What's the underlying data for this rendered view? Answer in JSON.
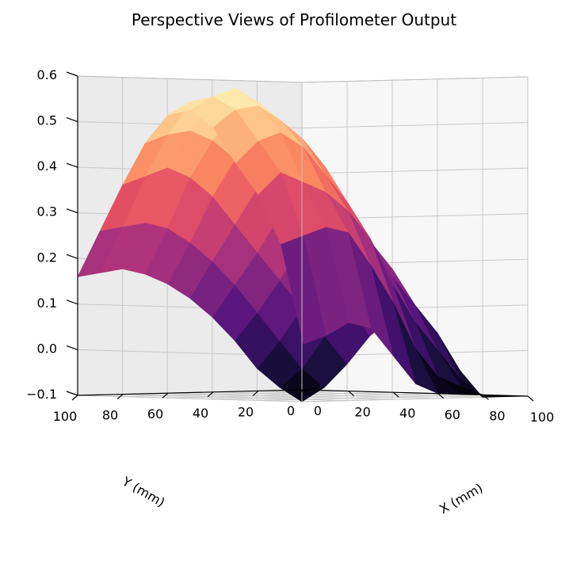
{
  "chart_data": {
    "type": "surface3d",
    "title": "Perspective Views of Profilometer Output",
    "xlabel": "X (mm)",
    "ylabel": "Y (mm)",
    "zlabel": "",
    "xlim": [
      0,
      100
    ],
    "ylim": [
      0,
      100
    ],
    "zlim": [
      -0.1,
      0.6
    ],
    "x_ticks": [
      "0",
      "20",
      "40",
      "60",
      "80",
      "100"
    ],
    "y_ticks": [
      "0",
      "20",
      "40",
      "60",
      "80",
      "100"
    ],
    "z_ticks": [
      "−0.1",
      "0.0",
      "0.1",
      "0.2",
      "0.3",
      "0.4",
      "0.5",
      "0.6"
    ],
    "colormap": "magma",
    "grid": true,
    "x": [
      0,
      10,
      20,
      30,
      40,
      50,
      60,
      70,
      80,
      90,
      100
    ],
    "y": [
      0,
      10,
      20,
      30,
      40,
      50,
      60,
      70,
      80,
      90,
      100
    ],
    "z": [
      [
        0.0,
        0.22,
        0.33,
        0.4,
        0.48,
        0.52,
        0.51,
        0.45,
        0.36,
        0.26,
        0.16
      ],
      [
        0.02,
        0.24,
        0.38,
        0.45,
        0.52,
        0.55,
        0.54,
        0.47,
        0.38,
        0.27,
        0.17
      ],
      [
        0.05,
        0.26,
        0.36,
        0.47,
        0.53,
        0.57,
        0.55,
        0.48,
        0.4,
        0.28,
        0.18
      ],
      [
        0.04,
        0.25,
        0.34,
        0.44,
        0.5,
        0.54,
        0.53,
        0.46,
        0.38,
        0.27,
        0.17
      ],
      [
        -0.02,
        0.18,
        0.3,
        0.38,
        0.46,
        0.5,
        0.48,
        0.42,
        0.34,
        0.24,
        0.15
      ],
      [
        -0.08,
        0.1,
        0.24,
        0.32,
        0.4,
        0.44,
        0.42,
        0.36,
        0.28,
        0.2,
        0.12
      ],
      [
        -0.1,
        0.0,
        0.14,
        0.24,
        0.32,
        0.36,
        0.36,
        0.3,
        0.22,
        0.15,
        0.08
      ],
      [
        -0.1,
        -0.06,
        0.06,
        0.16,
        0.24,
        0.28,
        0.3,
        0.24,
        0.16,
        0.09,
        0.03
      ],
      [
        -0.1,
        -0.08,
        0.0,
        0.1,
        0.18,
        0.22,
        0.24,
        0.18,
        0.1,
        0.03,
        -0.03
      ],
      [
        -0.1,
        -0.1,
        -0.06,
        0.04,
        0.1,
        0.14,
        0.16,
        0.12,
        0.04,
        -0.03,
        -0.07
      ],
      [
        -0.1,
        -0.1,
        -0.1,
        -0.04,
        0.02,
        0.06,
        0.08,
        0.04,
        -0.02,
        -0.07,
        -0.1
      ]
    ]
  }
}
